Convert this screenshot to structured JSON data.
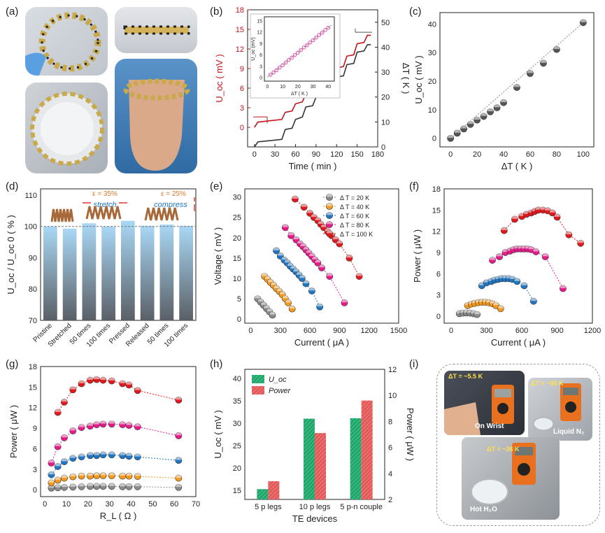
{
  "panel_labels": {
    "a": "(a)",
    "b": "(b)",
    "c": "(c)",
    "d": "(d)",
    "e": "(e)",
    "f": "(f)",
    "g": "(g)",
    "h": "(h)",
    "i": "(i)"
  },
  "chart_data": [
    {
      "id": "b",
      "type": "line",
      "xlabel": "Time ( min )",
      "ylabel_left": "U_oc ( mV )",
      "ylabel_right": "ΔT ( K )",
      "xticks": [
        0,
        30,
        60,
        90,
        120,
        150,
        180
      ],
      "yticks_left": [
        0,
        3,
        6,
        9,
        12,
        15,
        18
      ],
      "yticks_right": [
        0,
        10,
        20,
        30,
        40,
        50
      ],
      "xlim": [
        -10,
        180
      ],
      "ylim_left": [
        -3,
        18
      ],
      "series": [
        {
          "axis": "left",
          "color": "#c0141c",
          "x": [
            0,
            5,
            40,
            45,
            55,
            60,
            70,
            75,
            85,
            90,
            100,
            105,
            115,
            120,
            130,
            135,
            145,
            150,
            160,
            165,
            170
          ],
          "y": [
            0,
            0.8,
            1.2,
            2.3,
            2.5,
            3.6,
            3.9,
            5.1,
            5.3,
            6.5,
            6.8,
            7.9,
            8.1,
            9.1,
            9.3,
            10.9,
            11.1,
            12.8,
            13.0,
            14.1,
            14.1
          ]
        },
        {
          "axis": "right",
          "color": "#333333",
          "x": [
            0,
            5,
            40,
            45,
            55,
            60,
            70,
            75,
            85,
            90,
            100,
            105,
            115,
            120,
            130,
            135,
            145,
            150,
            160,
            165,
            170
          ],
          "y": [
            0,
            2,
            3,
            7,
            7.5,
            11,
            12,
            16,
            16.5,
            20,
            21,
            24.5,
            25,
            28,
            28.5,
            33,
            33.5,
            38,
            38.5,
            41,
            41
          ]
        }
      ],
      "inset": {
        "xlabel": "ΔT ( K )",
        "ylabel": "U_oc (mV)",
        "xticks": [
          0,
          10,
          20,
          30,
          40
        ],
        "yticks": [
          0,
          3,
          6,
          9,
          12,
          15
        ],
        "x": [
          2,
          4,
          6,
          8,
          10,
          12,
          14,
          16,
          18,
          20,
          22,
          24,
          26,
          28,
          30,
          32,
          34,
          36,
          38,
          40
        ],
        "y": [
          0.7,
          1.3,
          1.9,
          2.6,
          3.2,
          3.9,
          4.6,
          5.2,
          5.9,
          6.5,
          7.2,
          7.9,
          8.5,
          9.2,
          9.8,
          10.5,
          11.2,
          11.8,
          12.5,
          13.1
        ]
      }
    },
    {
      "id": "c",
      "type": "scatter",
      "xlabel": "ΔT ( K )",
      "ylabel": "U_oc ( mV )",
      "xticks": [
        0,
        20,
        40,
        60,
        80,
        100
      ],
      "yticks": [
        0,
        10,
        20,
        30,
        40
      ],
      "x": [
        0,
        5,
        10,
        15,
        20,
        25,
        30,
        35,
        40,
        50,
        60,
        70,
        80,
        100
      ],
      "y": [
        0,
        1.8,
        3.3,
        4.9,
        6.4,
        7.7,
        9.3,
        10.7,
        12.5,
        17.8,
        22.7,
        26.3,
        31.1,
        40.5
      ]
    },
    {
      "id": "d",
      "type": "bar",
      "ylabel": "U_oc / U_oc 0 ( % )",
      "ylim": [
        70,
        110
      ],
      "yticks": [
        70,
        80,
        90,
        100,
        110
      ],
      "categories": [
        "Pristine",
        "Stretched",
        "50 times",
        "100 times",
        "Pressed",
        "Released",
        "50 times",
        "100 times"
      ],
      "values": [
        100,
        99.3,
        101,
        100,
        101.8,
        100.2,
        100.6,
        100.2
      ],
      "annotations": {
        "stretch_strain": "ε = 35%",
        "stretch_label": "stretch",
        "compress_strain": "ε = 25%",
        "compress_label": "compress"
      }
    },
    {
      "id": "e",
      "type": "scatter",
      "xlabel": "Current ( μA )",
      "ylabel": "Voltage ( mV )",
      "xticks": [
        0,
        300,
        600,
        900,
        1200,
        1500
      ],
      "yticks": [
        0,
        5,
        10,
        15,
        20,
        25,
        30
      ],
      "series": [
        {
          "name": "Δ T = 20 K",
          "color": "#8a8a8a",
          "x": [
            70,
            100,
            130,
            160,
            190,
            220
          ],
          "y": [
            5,
            4.2,
            3.4,
            2.6,
            1.8,
            1
          ]
        },
        {
          "name": "Δ T = 40 K",
          "color": "#f39a1e",
          "x": [
            140,
            170,
            200,
            230,
            260,
            290,
            320,
            350,
            380,
            420
          ],
          "y": [
            10.5,
            9.8,
            9,
            8.3,
            7.5,
            6.8,
            6,
            5,
            4,
            2.5
          ]
        },
        {
          "name": "Δ T = 60 K",
          "color": "#1f77c4",
          "x": [
            260,
            300,
            340,
            370,
            400,
            430,
            460,
            490,
            520,
            560,
            620,
            700
          ],
          "y": [
            16.8,
            15.5,
            14.5,
            13.8,
            13,
            12.3,
            11.6,
            10.8,
            10,
            8.7,
            6.9,
            3
          ]
        },
        {
          "name": "Δ T = 80 K",
          "color": "#e8198b",
          "x": [
            350,
            410,
            460,
            500,
            530,
            560,
            590,
            620,
            650,
            680,
            720,
            800,
            950
          ],
          "y": [
            22.5,
            20.5,
            19.5,
            18.5,
            17.8,
            17,
            16.2,
            15.4,
            14.6,
            13.8,
            12.6,
            10.5,
            4
          ]
        },
        {
          "name": "Δ T = 100 K",
          "color": "#e4181c",
          "x": [
            450,
            540,
            600,
            640,
            680,
            710,
            740,
            780,
            820,
            860,
            900,
            1000,
            1100
          ],
          "y": [
            29.5,
            27.5,
            26,
            25,
            24.2,
            23.3,
            22.5,
            21.5,
            20.5,
            19.5,
            18.5,
            15,
            10.5
          ]
        }
      ]
    },
    {
      "id": "f",
      "type": "scatter",
      "xlabel": "Current ( μA )",
      "ylabel": "Power ( μW )",
      "xticks": [
        0,
        300,
        600,
        900,
        1200
      ],
      "yticks": [
        0,
        3,
        6,
        9,
        12,
        15,
        18
      ],
      "series": [
        {
          "color": "#8a8a8a",
          "x": [
            70,
            100,
            130,
            160,
            190,
            220
          ],
          "y": [
            0.35,
            0.42,
            0.45,
            0.42,
            0.34,
            0.22
          ]
        },
        {
          "color": "#f39a1e",
          "x": [
            140,
            170,
            200,
            230,
            260,
            290,
            320,
            350,
            380,
            420
          ],
          "y": [
            1.5,
            1.7,
            1.8,
            1.9,
            1.95,
            1.95,
            1.9,
            1.75,
            1.5,
            1.05
          ]
        },
        {
          "color": "#1f77c4",
          "x": [
            260,
            300,
            340,
            370,
            400,
            430,
            460,
            490,
            520,
            560,
            620,
            700
          ],
          "y": [
            4.3,
            4.7,
            4.9,
            5.1,
            5.2,
            5.3,
            5.3,
            5.3,
            5.2,
            4.9,
            4.3,
            2.1
          ]
        },
        {
          "color": "#e8198b",
          "x": [
            350,
            410,
            460,
            500,
            530,
            560,
            590,
            620,
            650,
            680,
            720,
            800,
            950
          ],
          "y": [
            7.9,
            8.4,
            9,
            9.2,
            9.4,
            9.5,
            9.5,
            9.5,
            9.5,
            9.4,
            9.1,
            8.4,
            3.9
          ]
        },
        {
          "color": "#e4181c",
          "x": [
            450,
            540,
            600,
            640,
            680,
            710,
            740,
            780,
            820,
            860,
            900,
            1000,
            1100
          ],
          "y": [
            12.1,
            13.7,
            14.1,
            14.4,
            14.6,
            14.8,
            15,
            15,
            14.9,
            14.6,
            14,
            11.5,
            10.3
          ]
        }
      ]
    },
    {
      "id": "g",
      "type": "scatter",
      "xlabel": "R_L ( Ω )",
      "ylabel": "Power ( μW )",
      "xticks": [
        0,
        10,
        20,
        30,
        40,
        50,
        60,
        70
      ],
      "yticks": [
        0,
        3,
        6,
        9,
        12,
        15,
        18
      ],
      "series": [
        {
          "color": "#8a8a8a",
          "x": [
            3,
            6,
            9,
            13,
            17,
            21,
            24,
            27,
            31,
            36,
            39,
            43,
            62
          ],
          "y": [
            0.25,
            0.3,
            0.35,
            0.4,
            0.45,
            0.5,
            0.5,
            0.5,
            0.5,
            0.45,
            0.45,
            0.45,
            0.35
          ]
        },
        {
          "color": "#f39a1e",
          "x": [
            3,
            6,
            9,
            13,
            17,
            21,
            24,
            27,
            31,
            36,
            39,
            43,
            62
          ],
          "y": [
            1,
            1.4,
            1.7,
            1.9,
            2,
            2,
            2.05,
            2.05,
            2.05,
            2,
            2,
            1.95,
            1.7
          ]
        },
        {
          "color": "#1f77c4",
          "x": [
            3,
            6,
            9,
            13,
            17,
            21,
            24,
            27,
            31,
            36,
            39,
            43,
            62
          ],
          "y": [
            2.2,
            3.4,
            4.1,
            4.6,
            4.8,
            5,
            5,
            5.1,
            5.1,
            5,
            4.9,
            4.8,
            4.3
          ]
        },
        {
          "color": "#e8198b",
          "x": [
            3,
            6,
            9,
            13,
            17,
            21,
            24,
            27,
            31,
            36,
            39,
            43,
            62
          ],
          "y": [
            3.9,
            6.3,
            7.6,
            8.6,
            9.1,
            9.3,
            9.5,
            9.6,
            9.6,
            9.5,
            9.4,
            9.2,
            7.9
          ]
        },
        {
          "color": "#e4181c",
          "x": [
            6,
            9,
            13,
            17,
            21,
            24,
            27,
            31,
            36,
            39,
            43,
            62
          ],
          "y": [
            11.3,
            12.8,
            14.6,
            15.5,
            16,
            16.1,
            16,
            15.9,
            15.5,
            15.3,
            14.5,
            13.1
          ]
        }
      ]
    },
    {
      "id": "h",
      "type": "bar",
      "xlabel": "TE devices",
      "ylabel_left": "U_oc ( mV )",
      "ylabel_right": "Power ( μW )",
      "categories": [
        "5 p legs",
        "10 p legs",
        "5 p-n couple"
      ],
      "yticks_left": [
        15,
        20,
        25,
        30,
        35,
        40
      ],
      "yticks_right": [
        2,
        4,
        6,
        8,
        10,
        12
      ],
      "series": [
        {
          "name": "U_oc",
          "axis": "left",
          "color": "#2db87a",
          "values": [
            15.3,
            31,
            31.1
          ]
        },
        {
          "name": "Power",
          "axis": "right",
          "color": "#f06a6a",
          "values": [
            3.4,
            7.1,
            9.6
          ]
        }
      ],
      "legend": [
        "U_oc",
        "Power"
      ]
    }
  ],
  "photo_i": {
    "wrist_temp": "ΔT = ~5.5 K",
    "wrist_label": "On Wrist",
    "n2_temp": "ΔT = ~95 K",
    "n2_label": "Liquid N₂",
    "water_temp": "ΔT = ~26 K",
    "water_label": "Hot H₂O"
  }
}
